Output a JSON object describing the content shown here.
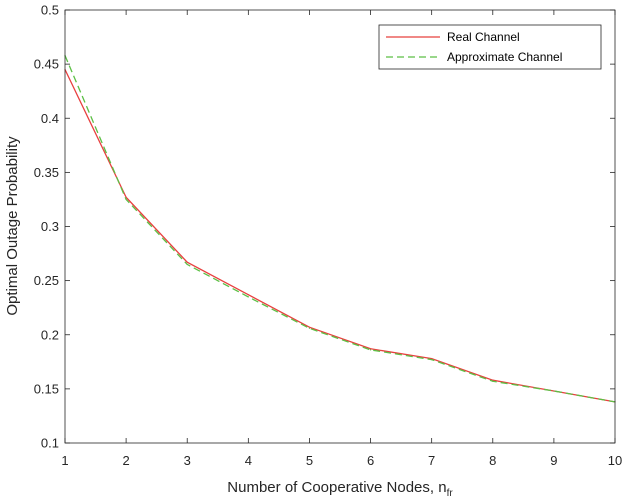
{
  "chart_data": {
    "type": "line",
    "title": "",
    "xlabel": "Number of Cooperative Nodes, n",
    "xlabel_subscript": "fr",
    "ylabel": "Optimal Outage Probability",
    "xlim": [
      1,
      10
    ],
    "ylim": [
      0.1,
      0.5
    ],
    "x_ticks": [
      1,
      2,
      3,
      4,
      5,
      6,
      7,
      8,
      9,
      10
    ],
    "y_ticks": [
      "0.1",
      "0.15",
      "0.2",
      "0.25",
      "0.3",
      "0.35",
      "0.4",
      "0.45",
      "0.5"
    ],
    "grid": false,
    "legend_position": "top-right",
    "x": [
      1,
      2,
      3,
      4,
      5,
      6,
      7,
      8,
      9,
      10
    ],
    "series": [
      {
        "name": "Real Channel",
        "color": "#e8403f",
        "style": "solid",
        "values": [
          0.445,
          0.327,
          0.267,
          0.237,
          0.207,
          0.187,
          0.178,
          0.158,
          0.148,
          0.138
        ]
      },
      {
        "name": "Approximate Channel",
        "color": "#5cbf45",
        "style": "dashed",
        "values": [
          0.458,
          0.325,
          0.265,
          0.235,
          0.206,
          0.186,
          0.177,
          0.157,
          0.148,
          0.138
        ]
      }
    ]
  }
}
